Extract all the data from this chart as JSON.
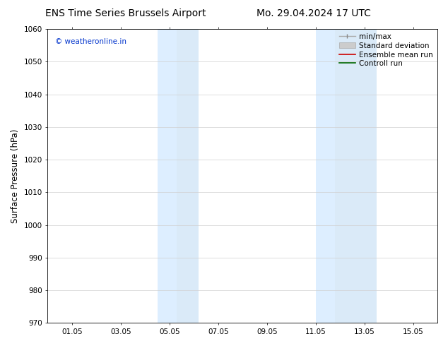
{
  "title_left": "ENS Time Series Brussels Airport",
  "title_right": "Mo. 29.04.2024 17 UTC",
  "ylabel": "Surface Pressure (hPa)",
  "ylim": [
    970,
    1060
  ],
  "yticks": [
    970,
    980,
    990,
    1000,
    1010,
    1020,
    1030,
    1040,
    1050,
    1060
  ],
  "xtick_labels": [
    "01.05",
    "03.05",
    "05.05",
    "07.05",
    "09.05",
    "11.05",
    "13.05",
    "15.05"
  ],
  "xtick_positions": [
    1,
    3,
    5,
    7,
    9,
    11,
    13,
    15
  ],
  "xlim": [
    0,
    16
  ],
  "shaded_bands": [
    {
      "xmin": 4.5,
      "xmax": 5.3,
      "color": "#ddeeff"
    },
    {
      "xmin": 5.3,
      "xmax": 6.2,
      "color": "#daeaf8"
    },
    {
      "xmin": 11.0,
      "xmax": 11.8,
      "color": "#ddeeff"
    },
    {
      "xmin": 11.8,
      "xmax": 13.5,
      "color": "#daeaf8"
    }
  ],
  "watermark": "© weatheronline.in",
  "watermark_color": "#0033cc",
  "background_color": "#ffffff",
  "plot_bg_color": "#ffffff",
  "grid_color": "#d0d0d0",
  "title_fontsize": 10,
  "tick_fontsize": 7.5,
  "ylabel_fontsize": 8.5,
  "legend_fontsize": 7.5
}
